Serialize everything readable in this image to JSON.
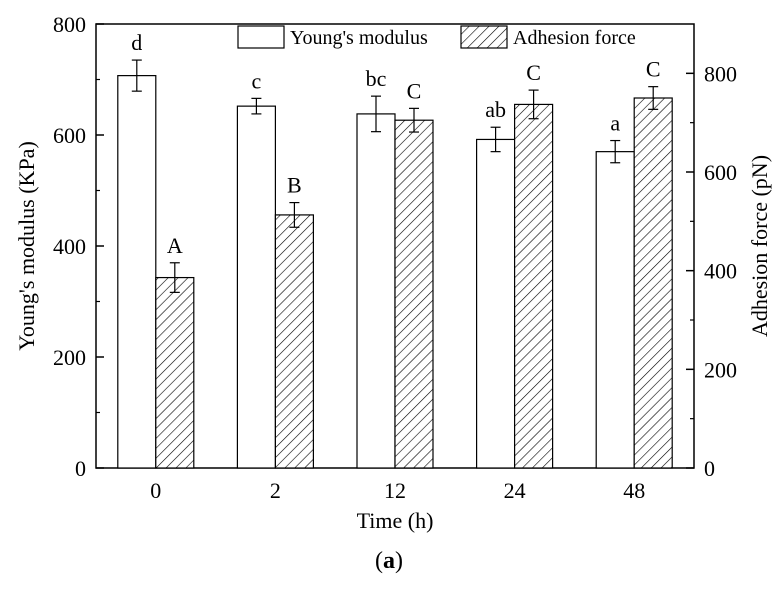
{
  "chart_data": {
    "type": "bar",
    "categories": [
      "0",
      "2",
      "12",
      "24",
      "48"
    ],
    "xlabel": "Time (h)",
    "ylabel_left": "Young's modulus (KPa)",
    "ylabel_right": "Adhesion force (pN)",
    "ylim_left": [
      0,
      800
    ],
    "ylim_right": [
      0,
      900
    ],
    "yticks_left": [
      "0",
      "200",
      "400",
      "600",
      "800"
    ],
    "yticks_right": [
      "0",
      "200",
      "400",
      "600",
      "800"
    ],
    "legend_position": "top",
    "series": [
      {
        "name": "Young's modulus",
        "axis": "left",
        "values": [
          707,
          652,
          638,
          592,
          570
        ],
        "errors": [
          28,
          14,
          32,
          22,
          20
        ],
        "letters": [
          "d",
          "c",
          "bc",
          "ab",
          "a"
        ],
        "pattern": "hollow",
        "color": "#ffffff"
      },
      {
        "name": "Adhesion force",
        "axis": "right",
        "values": [
          386,
          513,
          705,
          737,
          750
        ],
        "errors": [
          30,
          25,
          24,
          29,
          23
        ],
        "letters": [
          "A",
          "B",
          "C",
          "C",
          "C"
        ],
        "pattern": "hatched",
        "color": "#ffffff"
      }
    ]
  },
  "caption": {
    "open": "(",
    "letter": "a",
    "close": ")"
  }
}
